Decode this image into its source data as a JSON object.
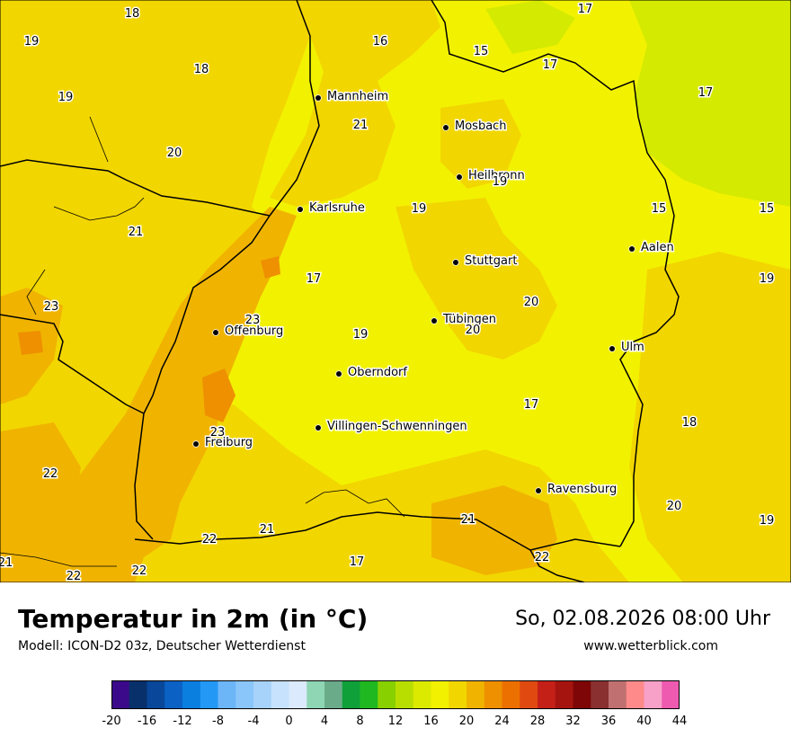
{
  "title": "Temperatur in 2m (in °C)",
  "model": "Modell: ICON-D2 03z, Deutscher Wetterdienst",
  "datetime": "So, 02.08.2026 08:00 Uhr",
  "website": "www.wetterblick.com",
  "colors": {
    "dominant_20": "#f2d600",
    "yellow_18": "#f2f200",
    "green_16": "#d4ea00",
    "orange_22": "#f0b400",
    "orange_24": "#ee9000",
    "border": "#000000"
  },
  "cities": [
    {
      "name": "Mannheim"
    },
    {
      "name": "Mosbach"
    },
    {
      "name": "Heilbronn"
    },
    {
      "name": "Karlsruhe"
    },
    {
      "name": "Aalen"
    },
    {
      "name": "Stuttgart"
    },
    {
      "name": "Tübingen"
    },
    {
      "name": "Offenburg"
    },
    {
      "name": "Ulm"
    },
    {
      "name": "Oberndorf"
    },
    {
      "name": "Villingen-Schwenningen"
    },
    {
      "name": "Freiburg"
    },
    {
      "name": "Ravensburg"
    }
  ],
  "temperature_labels": [
    "18",
    "17",
    "19",
    "16",
    "15",
    "17",
    "18",
    "19",
    "17",
    "21",
    "20",
    "19",
    "15",
    "15",
    "21",
    "19",
    "23",
    "17",
    "20",
    "23",
    "19",
    "20",
    "19",
    "17",
    "18",
    "23",
    "22",
    "21",
    "21",
    "22",
    "20",
    "22",
    "19",
    "17",
    "21",
    "22",
    "22",
    "21"
  ],
  "legend": {
    "ticks": [
      "-20",
      "-16",
      "-12",
      "-8",
      "-4",
      "0",
      "4",
      "8",
      "12",
      "16",
      "20",
      "24",
      "28",
      "32",
      "36",
      "40",
      "44"
    ],
    "colors": [
      "#3a0a8a",
      "#08306b",
      "#08479a",
      "#0b62c4",
      "#0a7fe0",
      "#2498f5",
      "#6cb5f7",
      "#8ac6f9",
      "#a7d2fa",
      "#c6e2fc",
      "#dbeafd",
      "#8fd6b4",
      "#6aac8a",
      "#10a03a",
      "#20b820",
      "#88d000",
      "#b8de00",
      "#dcea00",
      "#f2f200",
      "#f2d600",
      "#f0b400",
      "#ee9000",
      "#ec7000",
      "#e04a10",
      "#c42018",
      "#a61410",
      "#7e0606",
      "#8a3030",
      "#c07070",
      "#ff8a8a",
      "#f7a0c8",
      "#ee5ab0"
    ]
  }
}
